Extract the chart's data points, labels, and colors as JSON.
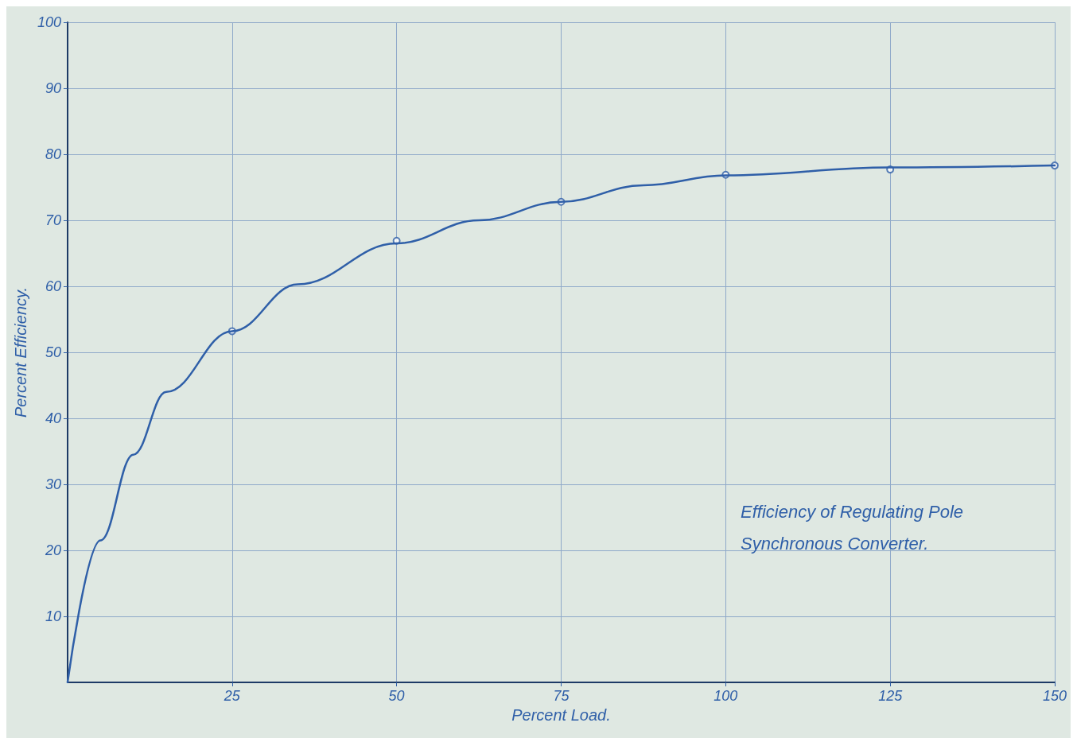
{
  "chart_data": {
    "type": "line",
    "title": "Efficiency of Regulating Pole Synchronous Converter.",
    "xlabel": "Percent Load.",
    "ylabel": "Percent Efficiency.",
    "xlim": [
      0,
      150
    ],
    "ylim": [
      0,
      100
    ],
    "xticks": [
      25,
      50,
      75,
      100,
      125,
      150
    ],
    "yticks": [
      10,
      20,
      30,
      40,
      50,
      60,
      70,
      80,
      90,
      100
    ],
    "grid": true,
    "series": [
      {
        "type": "scatter",
        "marker": "circle",
        "color": "#2f5fa8",
        "x": [
          25,
          50,
          75,
          100,
          125,
          150
        ],
        "values": [
          53.2,
          66.9,
          72.8,
          76.9,
          77.7,
          78.3
        ]
      },
      {
        "marker": "none",
        "line_style": "solid",
        "color": "#2f5fa8",
        "x": [
          0,
          5,
          10,
          15,
          25,
          35,
          50,
          62.5,
          75,
          87.5,
          100,
          125,
          150
        ],
        "values": [
          0,
          21.5,
          34.5,
          44,
          53.2,
          60.3,
          66.5,
          70,
          72.8,
          75.3,
          76.8,
          78,
          78.3
        ]
      }
    ]
  }
}
